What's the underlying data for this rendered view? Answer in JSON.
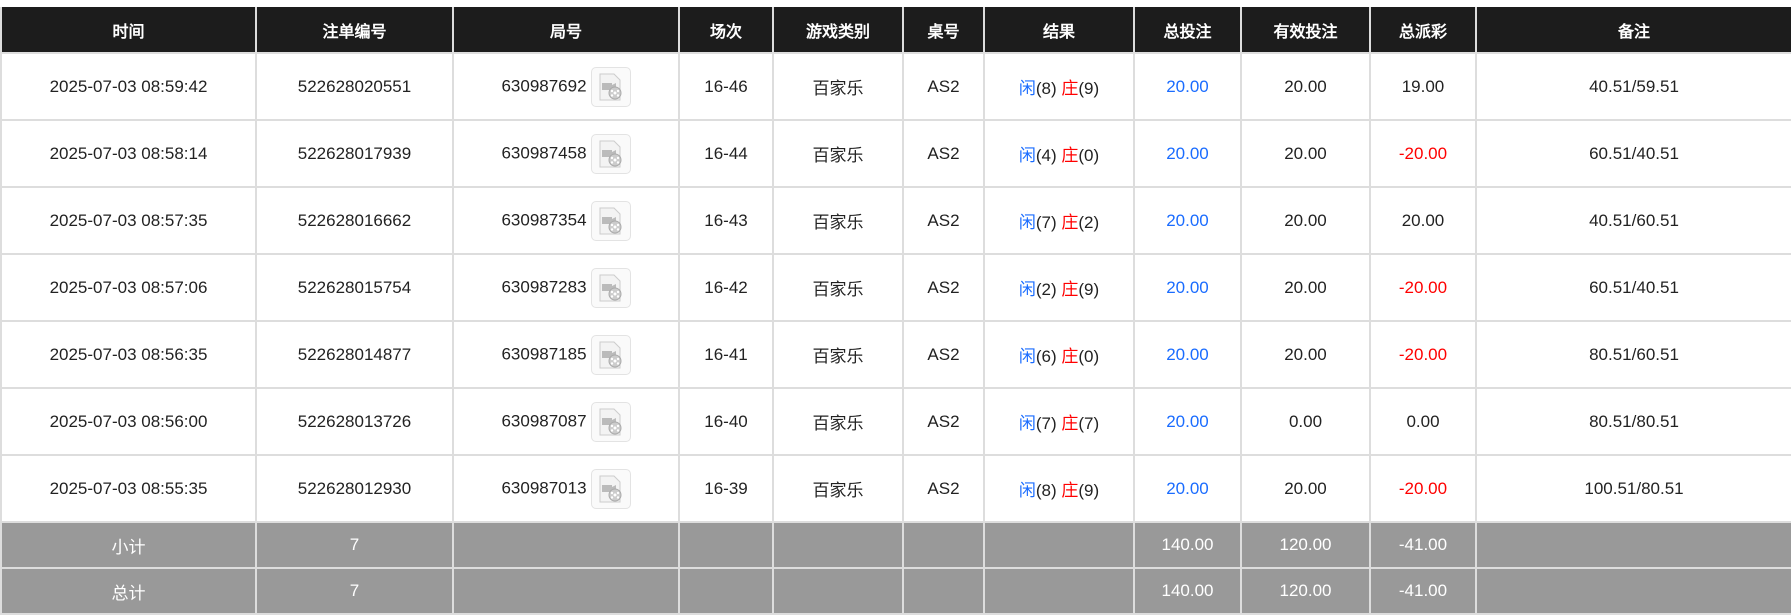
{
  "headers": [
    "时间",
    "注单编号",
    "局号",
    "场次",
    "游戏类别",
    "桌号",
    "结果",
    "总投注",
    "有效投注",
    "总派彩",
    "备注"
  ],
  "rows": [
    {
      "time": "2025-07-03 08:59:42",
      "bet_id": "522628020551",
      "round": "630987692",
      "shoe": "16-46",
      "game": "百家乐",
      "table": "AS2",
      "player_label": "闲",
      "player": "(8)",
      "banker_label": "庄",
      "banker": "(9)",
      "total_bet": "20.00",
      "valid_bet": "20.00",
      "payout": "19.00",
      "payout_negative": false,
      "note": "40.51/59.51"
    },
    {
      "time": "2025-07-03 08:58:14",
      "bet_id": "522628017939",
      "round": "630987458",
      "shoe": "16-44",
      "game": "百家乐",
      "table": "AS2",
      "player_label": "闲",
      "player": "(4)",
      "banker_label": "庄",
      "banker": "(0)",
      "total_bet": "20.00",
      "valid_bet": "20.00",
      "payout": "-20.00",
      "payout_negative": true,
      "note": "60.51/40.51"
    },
    {
      "time": "2025-07-03 08:57:35",
      "bet_id": "522628016662",
      "round": "630987354",
      "shoe": "16-43",
      "game": "百家乐",
      "table": "AS2",
      "player_label": "闲",
      "player": "(7)",
      "banker_label": "庄",
      "banker": "(2)",
      "total_bet": "20.00",
      "valid_bet": "20.00",
      "payout": "20.00",
      "payout_negative": false,
      "note": "40.51/60.51"
    },
    {
      "time": "2025-07-03 08:57:06",
      "bet_id": "522628015754",
      "round": "630987283",
      "shoe": "16-42",
      "game": "百家乐",
      "table": "AS2",
      "player_label": "闲",
      "player": "(2)",
      "banker_label": "庄",
      "banker": "(9)",
      "total_bet": "20.00",
      "valid_bet": "20.00",
      "payout": "-20.00",
      "payout_negative": true,
      "note": "60.51/40.51"
    },
    {
      "time": "2025-07-03 08:56:35",
      "bet_id": "522628014877",
      "round": "630987185",
      "shoe": "16-41",
      "game": "百家乐",
      "table": "AS2",
      "player_label": "闲",
      "player": "(6)",
      "banker_label": "庄",
      "banker": "(0)",
      "total_bet": "20.00",
      "valid_bet": "20.00",
      "payout": "-20.00",
      "payout_negative": true,
      "note": "80.51/60.51"
    },
    {
      "time": "2025-07-03 08:56:00",
      "bet_id": "522628013726",
      "round": "630987087",
      "shoe": "16-40",
      "game": "百家乐",
      "table": "AS2",
      "player_label": "闲",
      "player": "(7)",
      "banker_label": "庄",
      "banker": "(7)",
      "total_bet": "20.00",
      "valid_bet": "0.00",
      "payout": "0.00",
      "payout_negative": false,
      "note": "80.51/80.51"
    },
    {
      "time": "2025-07-03 08:55:35",
      "bet_id": "522628012930",
      "round": "630987013",
      "shoe": "16-39",
      "game": "百家乐",
      "table": "AS2",
      "player_label": "闲",
      "player": "(8)",
      "banker_label": "庄",
      "banker": "(9)",
      "total_bet": "20.00",
      "valid_bet": "20.00",
      "payout": "-20.00",
      "payout_negative": true,
      "note": "100.51/80.51"
    }
  ],
  "summary": [
    {
      "label": "小计",
      "count": "7",
      "total_bet": "140.00",
      "valid_bet": "120.00",
      "payout": "-41.00"
    },
    {
      "label": "总计",
      "count": "7",
      "total_bet": "140.00",
      "valid_bet": "120.00",
      "payout": "-41.00"
    }
  ],
  "icons": {
    "replay": "video-replay-icon"
  },
  "colors": {
    "header_bg": "#1c1c1c",
    "summary_bg": "#999999",
    "player": "#1a6cff",
    "banker": "#ff0000",
    "negative": "#ff0000"
  }
}
